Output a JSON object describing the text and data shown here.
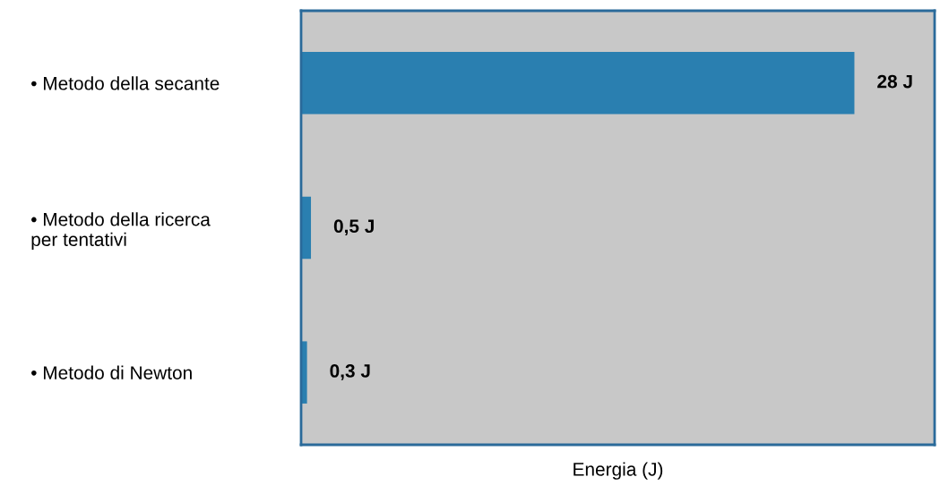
{
  "chart_data": {
    "type": "bar",
    "orientation": "horizontal",
    "xlabel": "Energia (J)",
    "categories": [
      "• Metodo della secante",
      "• Metodo della ricerca\nper tentativi",
      "• Metodo di Newton"
    ],
    "values": [
      28,
      0.5,
      0.3
    ],
    "value_labels": [
      "28 J",
      "0,5 J",
      "0,3 J"
    ],
    "color": "#2a7fb0",
    "grid": false,
    "legend": false
  }
}
